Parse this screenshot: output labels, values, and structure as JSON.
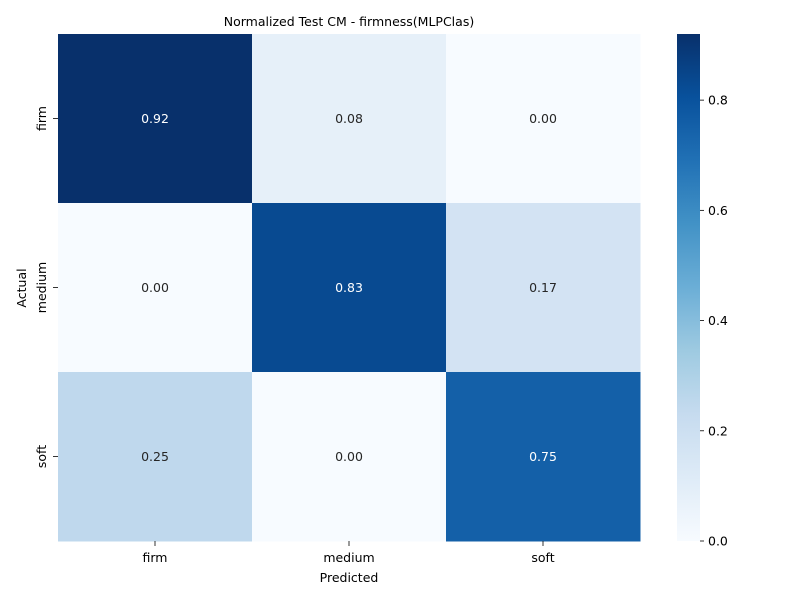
{
  "chart_data": {
    "type": "heatmap",
    "title": "Normalized Test CM - firmness(MLPClas)",
    "xlabel": "Predicted",
    "ylabel": "Actual",
    "x_categories": [
      "firm",
      "medium",
      "soft"
    ],
    "y_categories": [
      "firm",
      "medium",
      "soft"
    ],
    "values": [
      [
        0.92,
        0.08,
        0.0
      ],
      [
        0.0,
        0.83,
        0.17
      ],
      [
        0.25,
        0.0,
        0.75
      ]
    ],
    "cell_labels": [
      [
        "0.92",
        "0.08",
        "0.00"
      ],
      [
        "0.00",
        "0.83",
        "0.17"
      ],
      [
        "0.25",
        "0.00",
        "0.75"
      ]
    ],
    "colormap": "Blues",
    "colorbar": {
      "range": [
        0.0,
        0.92
      ],
      "ticks": [
        0.0,
        0.2,
        0.4,
        0.6,
        0.8
      ],
      "tick_labels": [
        "0.0",
        "0.2",
        "0.4",
        "0.6",
        "0.8"
      ]
    },
    "grid": false
  }
}
